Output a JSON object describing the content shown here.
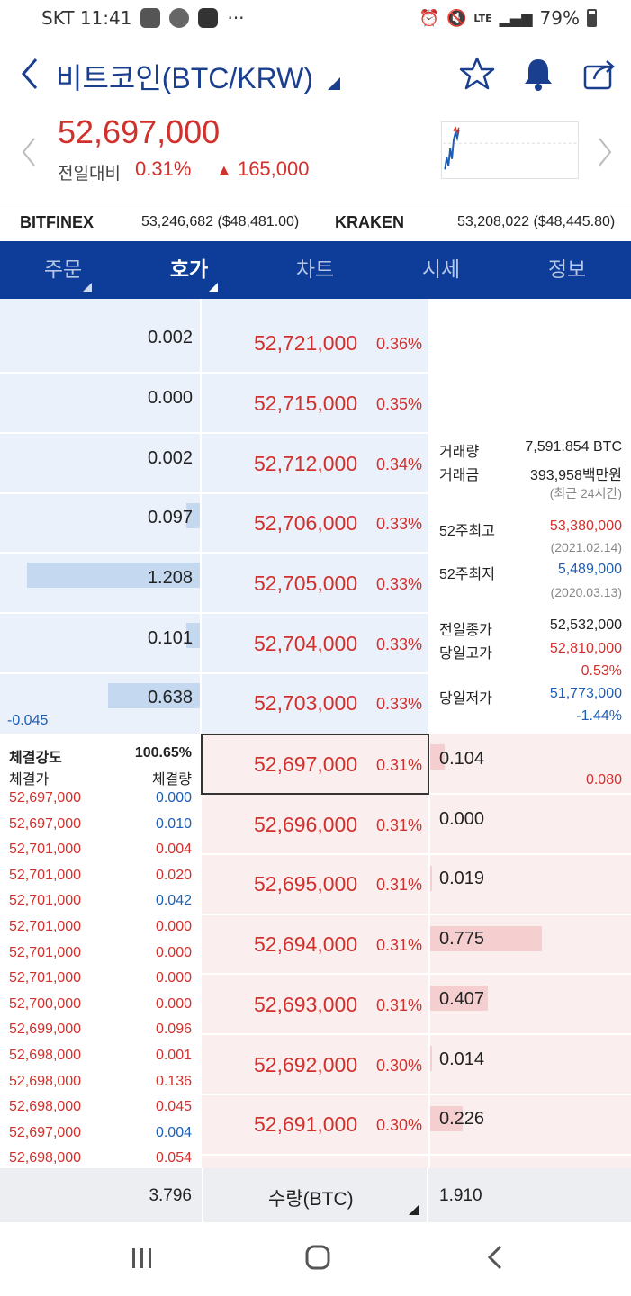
{
  "status_bar": {
    "carrier_time": "SKT 11:41",
    "dots": "···",
    "network": "LTE",
    "battery": "79%"
  },
  "header": {
    "title": "비트코인(BTC/KRW)"
  },
  "price": {
    "current": "52,697,000",
    "change_label": "전일대비",
    "change_pct": "0.31%",
    "change_abs": "165,000"
  },
  "exchanges": [
    {
      "name": "BITFINEX",
      "value": "53,246,682 ($48,481.00)"
    },
    {
      "name": "KRAKEN",
      "value": "53,208,022 ($48,445.80)"
    }
  ],
  "tabs": [
    "주문",
    "호가",
    "차트",
    "시세",
    "정보"
  ],
  "asks": [
    {
      "qty": "0.002",
      "price": "52,721,000",
      "pct": "0.36%",
      "bar": 0.0
    },
    {
      "qty": "0.000",
      "price": "52,715,000",
      "pct": "0.35%",
      "bar": 0.0
    },
    {
      "qty": "0.002",
      "price": "52,712,000",
      "pct": "0.34%",
      "bar": 0.0
    },
    {
      "qty": "0.097",
      "price": "52,706,000",
      "pct": "0.33%",
      "bar": 0.08
    },
    {
      "qty": "1.208",
      "price": "52,705,000",
      "pct": "0.33%",
      "bar": 1.0
    },
    {
      "qty": "0.101",
      "price": "52,704,000",
      "pct": "0.33%",
      "bar": 0.08
    },
    {
      "qty": "0.638",
      "price": "52,703,000",
      "pct": "0.33%",
      "bar": 0.53
    }
  ],
  "ask_diff": "-0.045",
  "bids": [
    {
      "qty": "0.104",
      "price": "52,697,000",
      "pct": "0.31%",
      "bar": 0.13
    },
    {
      "qty": "0.000",
      "price": "52,696,000",
      "pct": "0.31%",
      "bar": 0.0
    },
    {
      "qty": "0.019",
      "price": "52,695,000",
      "pct": "0.31%",
      "bar": 0.02
    },
    {
      "qty": "0.775",
      "price": "52,694,000",
      "pct": "0.31%",
      "bar": 1.0
    },
    {
      "qty": "0.407",
      "price": "52,693,000",
      "pct": "0.31%",
      "bar": 0.52
    },
    {
      "qty": "0.014",
      "price": "52,692,000",
      "pct": "0.30%",
      "bar": 0.02
    },
    {
      "qty": "0.226",
      "price": "52,691,000",
      "pct": "0.30%",
      "bar": 0.29
    }
  ],
  "bid_diff": "0.080",
  "info": {
    "volume_label": "거래량",
    "volume_value": "7,591.854 BTC",
    "amount_label": "거래금",
    "amount_value": "393,958백만원",
    "period_note": "(최근 24시간)",
    "high52_label": "52주최고",
    "high52_value": "53,380,000",
    "high52_date": "(2021.02.14)",
    "low52_label": "52주최저",
    "low52_value": "5,489,000",
    "low52_date": "(2020.03.13)",
    "prev_close_label": "전일종가",
    "prev_close_value": "52,532,000",
    "day_high_label": "당일고가",
    "day_high_value": "52,810,000",
    "day_high_pct": "0.53%",
    "day_low_label": "당일저가",
    "day_low_value": "51,773,000",
    "day_low_pct": "-1.44%"
  },
  "trades": {
    "strength_label": "체결강도",
    "strength_value": "100.65%",
    "price_header": "체결가",
    "qty_header": "체결량",
    "rows": [
      {
        "price": "52,697,000",
        "qty": "0.000",
        "side": "buy"
      },
      {
        "price": "52,697,000",
        "qty": "0.010",
        "side": "buy"
      },
      {
        "price": "52,701,000",
        "qty": "0.004",
        "side": "sell"
      },
      {
        "price": "52,701,000",
        "qty": "0.020",
        "side": "sell"
      },
      {
        "price": "52,701,000",
        "qty": "0.042",
        "side": "buy"
      },
      {
        "price": "52,701,000",
        "qty": "0.000",
        "side": "sell"
      },
      {
        "price": "52,701,000",
        "qty": "0.000",
        "side": "sell"
      },
      {
        "price": "52,701,000",
        "qty": "0.000",
        "side": "sell"
      },
      {
        "price": "52,700,000",
        "qty": "0.000",
        "side": "sell"
      },
      {
        "price": "52,699,000",
        "qty": "0.096",
        "side": "sell"
      },
      {
        "price": "52,698,000",
        "qty": "0.001",
        "side": "sell"
      },
      {
        "price": "52,698,000",
        "qty": "0.136",
        "side": "sell"
      },
      {
        "price": "52,698,000",
        "qty": "0.045",
        "side": "sell"
      },
      {
        "price": "52,697,000",
        "qty": "0.004",
        "side": "buy"
      },
      {
        "price": "52,698,000",
        "qty": "0.054",
        "side": "sell"
      }
    ]
  },
  "footer": {
    "ask_total": "3.796",
    "unit_label": "수량(BTC)",
    "bid_total": "1.910"
  },
  "colors": {
    "accent": "#0d3d99",
    "up": "#d0312d",
    "down": "#1e5fb4",
    "ask_bg": "#eaf1fa",
    "bid_bg": "#fbeeee"
  }
}
